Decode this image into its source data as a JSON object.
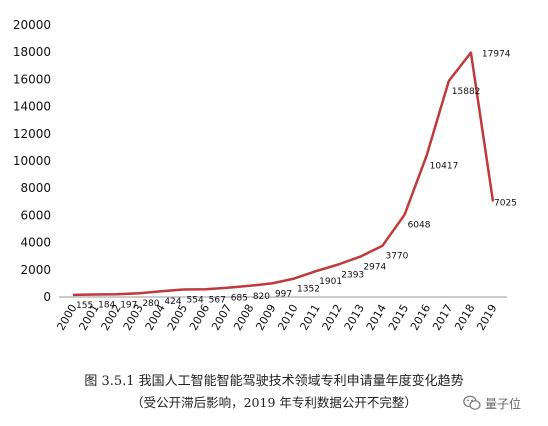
{
  "chart_data": {
    "type": "line",
    "x": [
      "2000",
      "2001",
      "2002",
      "2003",
      "2004",
      "2005",
      "2006",
      "2007",
      "2008",
      "2009",
      "2010",
      "2011",
      "2012",
      "2013",
      "2014",
      "2015",
      "2016",
      "2017",
      "2018",
      "2019"
    ],
    "series": [
      {
        "values": [
          155,
          184,
          197,
          280,
          424,
          554,
          567,
          685,
          820,
          997,
          1352,
          1901,
          2393,
          2974,
          3770,
          6048,
          10417,
          15882,
          17974,
          7025
        ]
      }
    ],
    "data_labels": [
      "155",
      "184",
      "197",
      "280",
      "424",
      "554",
      "567",
      "685",
      "820",
      "997",
      "1352",
      "1901",
      "2393",
      "2974",
      "3770",
      "6048",
      "10417",
      "15882",
      "17974",
      "7025"
    ],
    "y_ticks": [
      "0",
      "2000",
      "4000",
      "6000",
      "8000",
      "10000",
      "12000",
      "14000",
      "16000",
      "18000",
      "20000"
    ],
    "ylim": [
      0,
      20000
    ],
    "grid": false,
    "line_color": "#c0393b"
  },
  "caption": {
    "title": "图 3.5.1  我国人工智能智能驾驶技术领域专利申请量年度变化趋势",
    "note": "（受公开滞后影响，2019 年专利数据公开不完整）"
  },
  "watermark": {
    "text": "量子位",
    "icon": "wechat-icon"
  }
}
